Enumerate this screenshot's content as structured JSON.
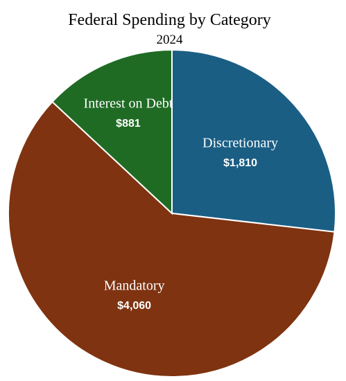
{
  "chart_data": {
    "type": "pie",
    "title": "Federal Spending by Category",
    "subtitle": "2024",
    "slices": [
      {
        "label": "Discretionary",
        "value": 1810,
        "value_label": "$1,810",
        "color": "#1a5e84"
      },
      {
        "label": "Mandatory",
        "value": 4060,
        "value_label": "$4,060",
        "color": "#7f3310"
      },
      {
        "label": "Interest on Debt",
        "value": 881,
        "value_label": "$881",
        "color": "#1f6b24"
      }
    ],
    "start": "12 o'clock",
    "direction": "clockwise",
    "legend": "none",
    "border_color": "#ffffff"
  }
}
